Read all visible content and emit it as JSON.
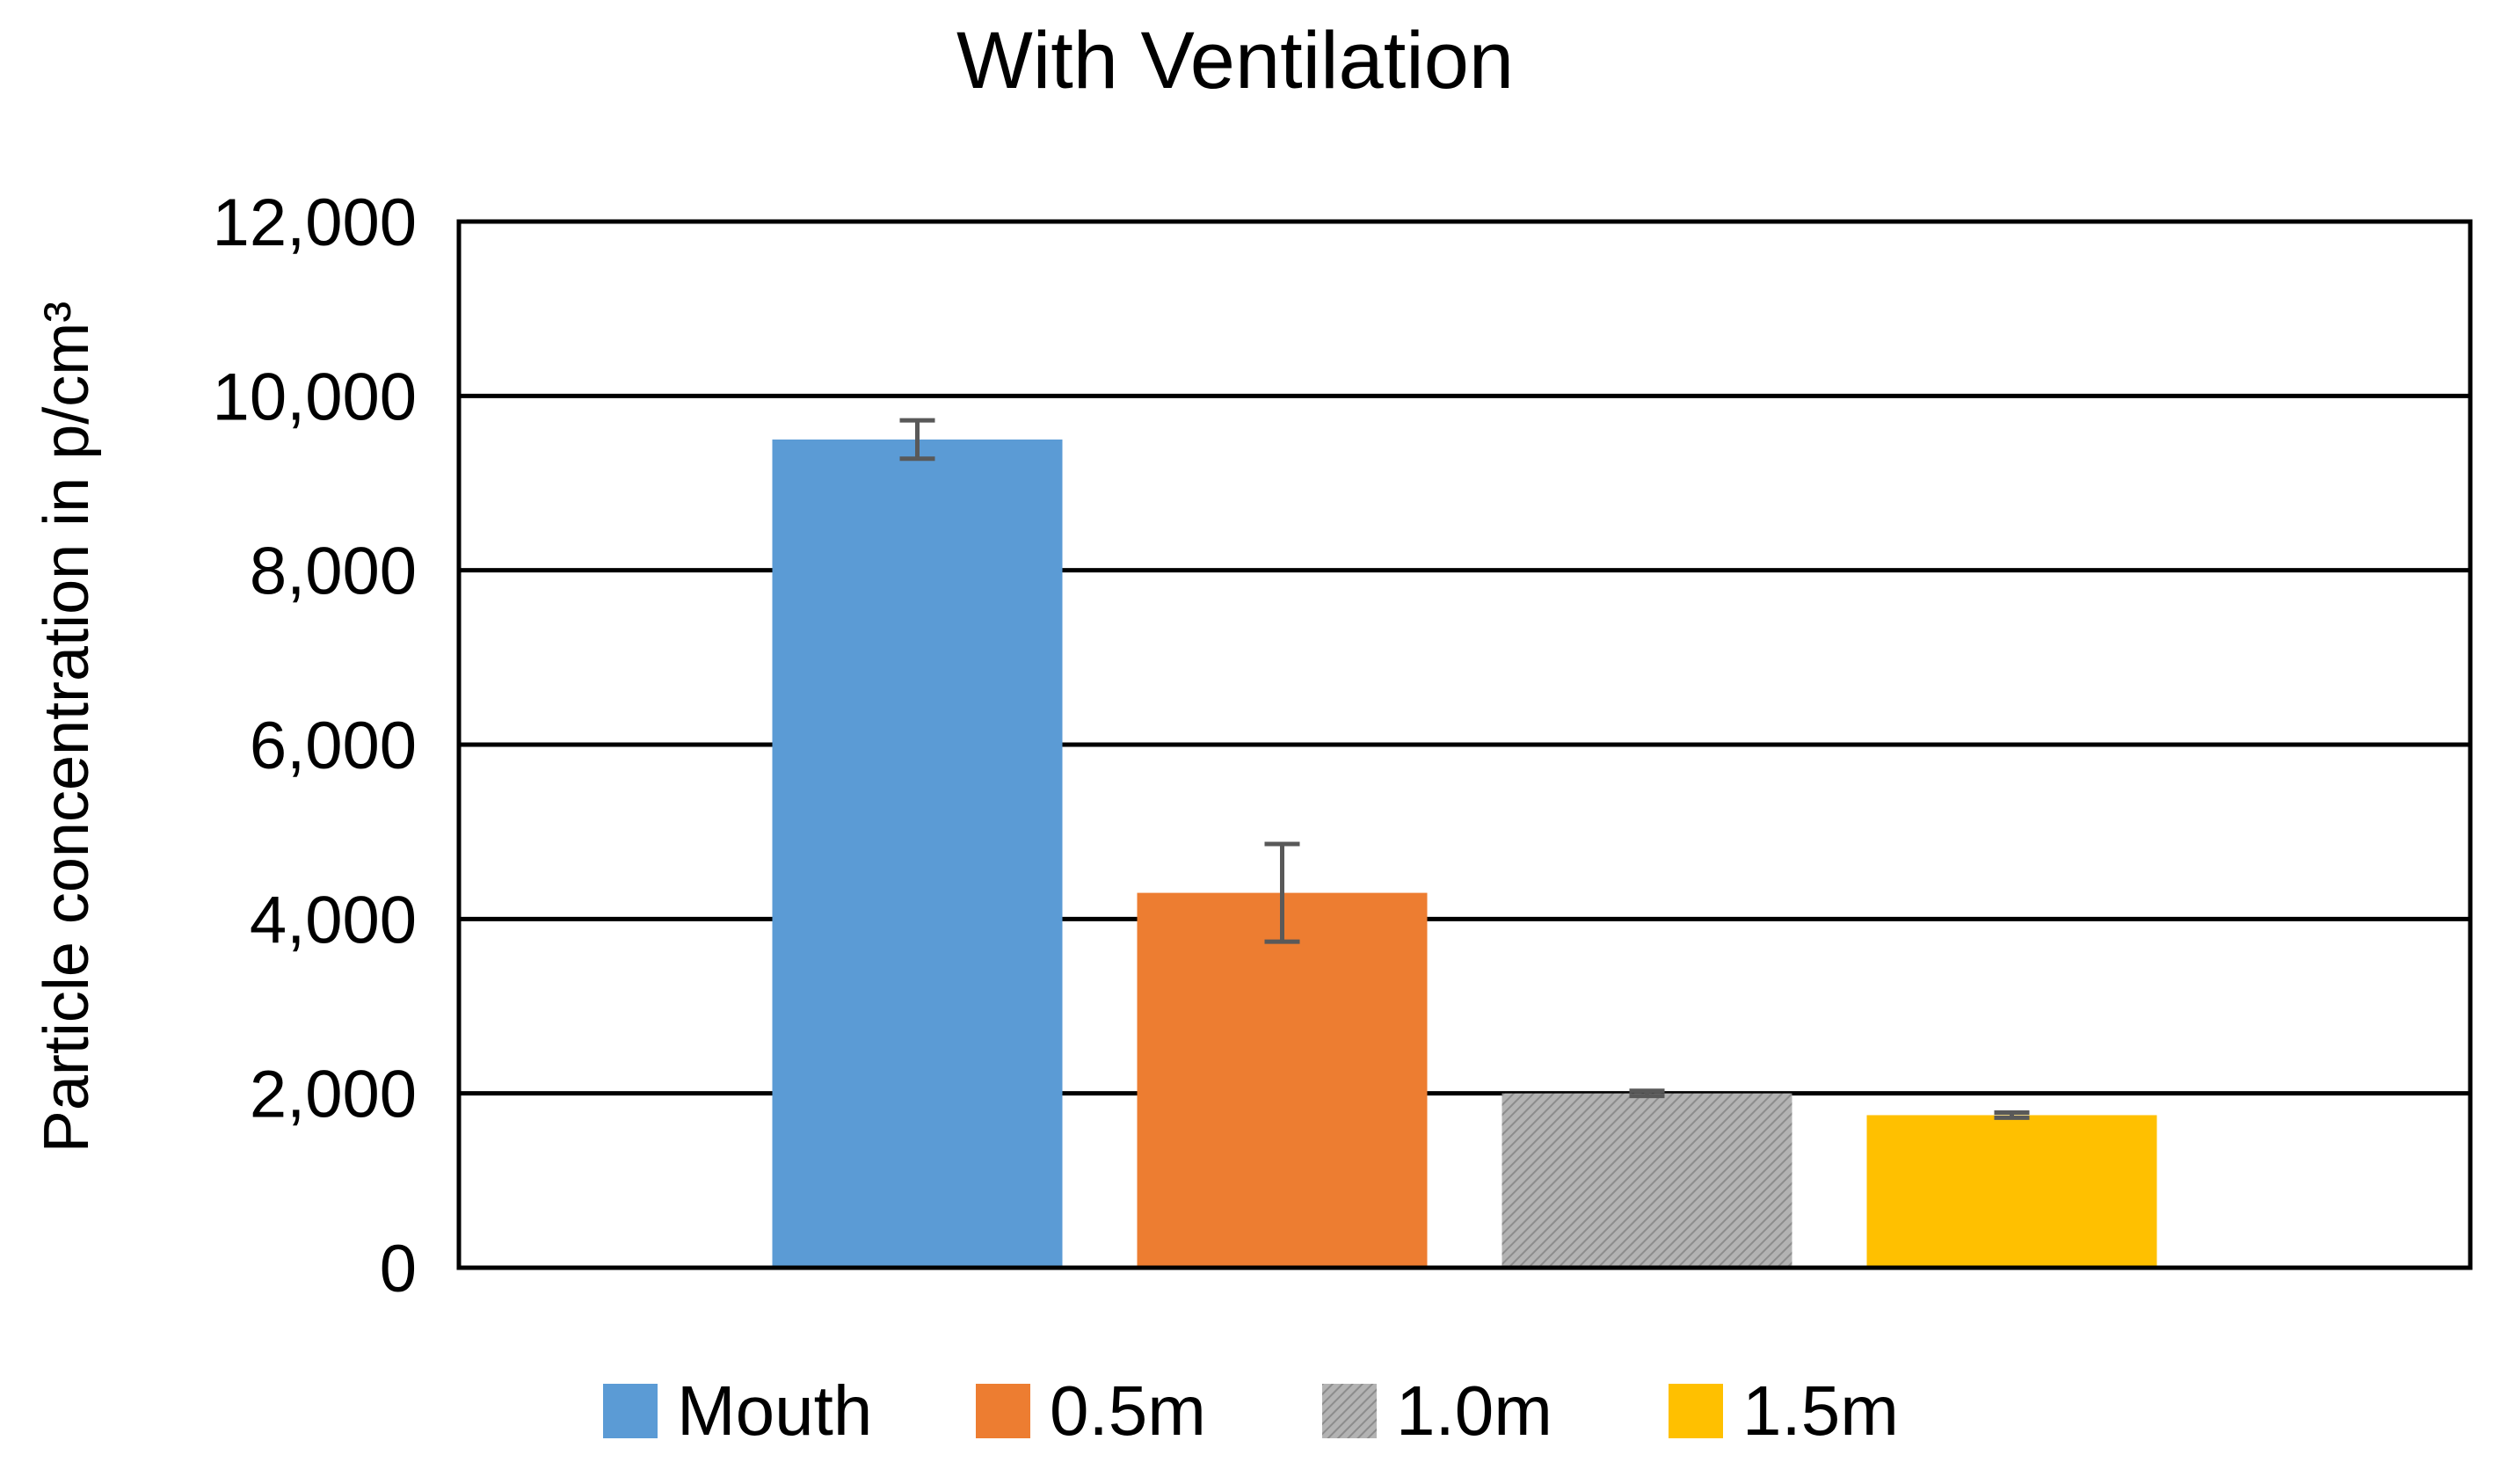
{
  "chart_data": {
    "type": "bar",
    "title": "With Ventilation",
    "xlabel": "",
    "ylabel": "Particle concentration in p/cm³",
    "ylim": [
      0,
      12000
    ],
    "yticks": [
      {
        "value": 0,
        "label": "0"
      },
      {
        "value": 2000,
        "label": "2,000"
      },
      {
        "value": 4000,
        "label": "4,000"
      },
      {
        "value": 6000,
        "label": "6,000"
      },
      {
        "value": 8000,
        "label": "8,000"
      },
      {
        "value": 10000,
        "label": "10,000"
      },
      {
        "value": 12000,
        "label": "12,000"
      }
    ],
    "grid": true,
    "legend_position": "bottom",
    "series": [
      {
        "name": "Mouth",
        "value": 9500,
        "error": 220,
        "color": "#5b9bd5",
        "pattern": "solid"
      },
      {
        "name": "0.5m",
        "value": 4300,
        "error": 560,
        "color": "#ed7d31",
        "pattern": "solid"
      },
      {
        "name": "1.0m",
        "value": 2000,
        "error": 30,
        "color": "#a5a5a5",
        "pattern": "hatched"
      },
      {
        "name": "1.5m",
        "value": 1750,
        "error": 30,
        "color": "#ffc000",
        "pattern": "solid"
      }
    ]
  }
}
